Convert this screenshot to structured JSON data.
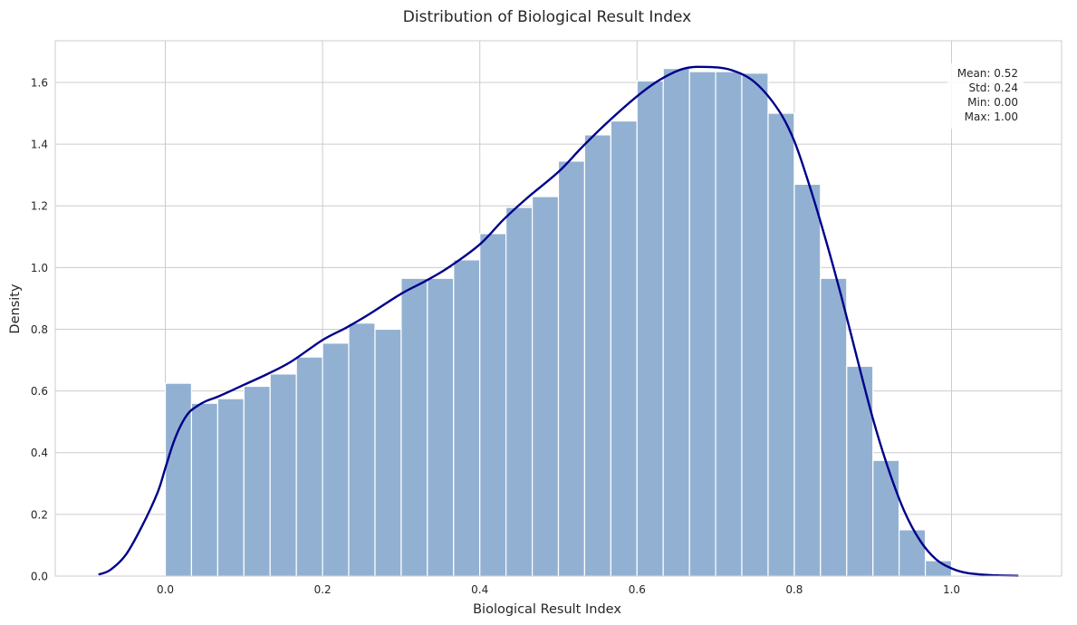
{
  "chart_data": {
    "type": "bar",
    "title": "Distribution of Biological Result Index",
    "xlabel": "Biological Result Index",
    "ylabel": "Density",
    "xlim": [
      -0.14,
      1.14
    ],
    "ylim": [
      0,
      1.735
    ],
    "xticks": [
      0.0,
      0.2,
      0.4,
      0.6,
      0.8,
      1.0
    ],
    "xtick_labels": [
      "0.0",
      "0.2",
      "0.4",
      "0.6",
      "0.8",
      "1.0"
    ],
    "yticks": [
      0.0,
      0.2,
      0.4,
      0.6,
      0.8,
      1.0,
      1.2,
      1.4,
      1.6
    ],
    "ytick_labels": [
      "0.0",
      "0.2",
      "0.4",
      "0.6",
      "0.8",
      "1.0",
      "1.2",
      "1.4",
      "1.6"
    ],
    "grid": true,
    "bins": {
      "edges": [
        0.0,
        0.0333,
        0.0667,
        0.1,
        0.1333,
        0.1667,
        0.2,
        0.2333,
        0.2667,
        0.3,
        0.3333,
        0.3667,
        0.4,
        0.4333,
        0.4667,
        0.5,
        0.5333,
        0.5667,
        0.6,
        0.6333,
        0.6667,
        0.7,
        0.7333,
        0.7667,
        0.8,
        0.8333,
        0.8667,
        0.9,
        0.9333,
        0.9667,
        1.0
      ],
      "values": [
        0.625,
        0.56,
        0.575,
        0.615,
        0.655,
        0.71,
        0.755,
        0.82,
        0.8,
        0.965,
        0.965,
        1.025,
        1.11,
        1.195,
        1.23,
        1.345,
        1.43,
        1.475,
        1.605,
        1.645,
        1.635,
        1.635,
        1.63,
        1.5,
        1.27,
        0.965,
        0.68,
        0.375,
        0.15,
        0.05
      ]
    },
    "kde": {
      "name": "",
      "x": [
        -0.085,
        -0.07,
        -0.05,
        -0.03,
        -0.01,
        0.0,
        0.01,
        0.02,
        0.03,
        0.04,
        0.05,
        0.07,
        0.1,
        0.13,
        0.16,
        0.2,
        0.23,
        0.26,
        0.3,
        0.33,
        0.36,
        0.4,
        0.43,
        0.46,
        0.5,
        0.53,
        0.56,
        0.6,
        0.63,
        0.66,
        0.69,
        0.72,
        0.75,
        0.78,
        0.8,
        0.82,
        0.84,
        0.86,
        0.88,
        0.9,
        0.92,
        0.94,
        0.96,
        0.98,
        1.0,
        1.02,
        1.05,
        1.085
      ],
      "y": [
        0.005,
        0.02,
        0.07,
        0.16,
        0.27,
        0.35,
        0.43,
        0.49,
        0.53,
        0.55,
        0.565,
        0.585,
        0.62,
        0.655,
        0.695,
        0.765,
        0.805,
        0.85,
        0.915,
        0.955,
        1.0,
        1.075,
        1.155,
        1.225,
        1.31,
        1.39,
        1.465,
        1.555,
        1.61,
        1.645,
        1.65,
        1.64,
        1.6,
        1.51,
        1.41,
        1.26,
        1.09,
        0.905,
        0.705,
        0.51,
        0.345,
        0.21,
        0.115,
        0.055,
        0.025,
        0.01,
        0.003,
        0.001
      ]
    },
    "annotations": {
      "stats_lines": [
        "Mean: 0.52",
        "Std: 0.24",
        "Min: 0.00",
        "Max: 1.00"
      ]
    },
    "colors": {
      "bar_fill": "#92b1d2",
      "bar_edge": "#ffffff",
      "kde_line": "#00008b",
      "grid": "#cccccc",
      "frame": "#cccccc",
      "text": "#262626"
    }
  }
}
